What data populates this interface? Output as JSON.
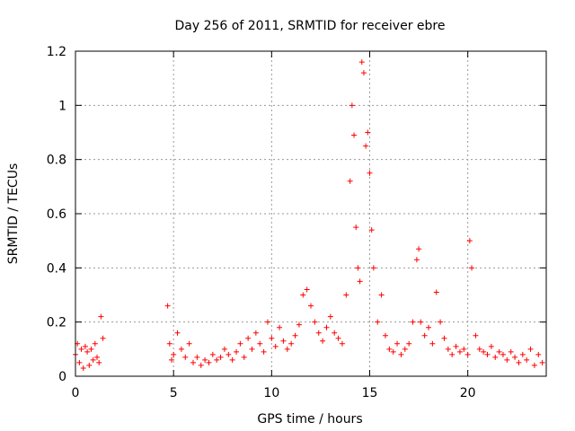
{
  "chart_data": {
    "type": "scatter",
    "title": "Day 256 of 2011, SRMTID for receiver ebre",
    "xlabel": "GPS time / hours",
    "ylabel": "SRMTID / TECUs",
    "xlim": [
      0,
      24
    ],
    "ylim": [
      0,
      1.2
    ],
    "xticks": [
      0,
      5,
      10,
      15,
      20
    ],
    "xtick_labels": [
      "0",
      "5",
      "10",
      "15",
      "20"
    ],
    "yticks": [
      0,
      0.2,
      0.4,
      0.6,
      0.8,
      1.0,
      1.2
    ],
    "ytick_labels": [
      "0",
      "0.2",
      "0.4",
      "0.6",
      "0.8",
      "1",
      "1.2"
    ],
    "grid": true,
    "marker": "+",
    "color": "#ff0000",
    "series": [
      {
        "name": "SRMTID",
        "x": [
          0.0,
          0.1,
          0.2,
          0.3,
          0.4,
          0.5,
          0.6,
          0.7,
          0.8,
          0.9,
          1.0,
          1.1,
          1.2,
          1.3,
          1.4,
          4.7,
          4.8,
          4.9,
          5.0,
          5.2,
          5.4,
          5.6,
          5.8,
          6.0,
          6.2,
          6.4,
          6.6,
          6.8,
          7.0,
          7.2,
          7.4,
          7.6,
          7.8,
          8.0,
          8.2,
          8.4,
          8.6,
          8.8,
          9.0,
          9.2,
          9.4,
          9.6,
          9.8,
          10.0,
          10.2,
          10.4,
          10.6,
          10.8,
          11.0,
          11.2,
          11.4,
          11.6,
          11.8,
          12.0,
          12.2,
          12.4,
          12.6,
          12.8,
          13.0,
          13.2,
          13.4,
          13.6,
          13.8,
          14.0,
          14.1,
          14.2,
          14.3,
          14.4,
          14.5,
          14.6,
          14.7,
          14.8,
          14.9,
          15.0,
          15.1,
          15.2,
          15.4,
          15.6,
          15.8,
          16.0,
          16.2,
          16.4,
          16.6,
          16.8,
          17.0,
          17.2,
          17.4,
          17.5,
          17.6,
          17.8,
          18.0,
          18.2,
          18.4,
          18.6,
          18.8,
          19.0,
          19.2,
          19.4,
          19.6,
          19.8,
          20.0,
          20.1,
          20.2,
          20.4,
          20.6,
          20.8,
          21.0,
          21.2,
          21.4,
          21.6,
          21.8,
          22.0,
          22.2,
          22.4,
          22.6,
          22.8,
          23.0,
          23.2,
          23.4,
          23.6,
          23.8
        ],
        "y": [
          0.08,
          0.12,
          0.05,
          0.1,
          0.03,
          0.11,
          0.09,
          0.04,
          0.1,
          0.06,
          0.12,
          0.07,
          0.05,
          0.22,
          0.14,
          0.26,
          0.12,
          0.06,
          0.08,
          0.16,
          0.1,
          0.07,
          0.12,
          0.05,
          0.07,
          0.04,
          0.06,
          0.05,
          0.08,
          0.06,
          0.07,
          0.1,
          0.08,
          0.06,
          0.09,
          0.12,
          0.07,
          0.14,
          0.1,
          0.16,
          0.12,
          0.09,
          0.2,
          0.14,
          0.11,
          0.18,
          0.13,
          0.1,
          0.12,
          0.15,
          0.19,
          0.3,
          0.32,
          0.26,
          0.2,
          0.16,
          0.13,
          0.18,
          0.22,
          0.16,
          0.14,
          0.12,
          0.3,
          0.72,
          1.0,
          0.89,
          0.55,
          0.4,
          0.35,
          1.16,
          1.12,
          0.85,
          0.9,
          0.75,
          0.54,
          0.4,
          0.2,
          0.3,
          0.15,
          0.1,
          0.09,
          0.12,
          0.08,
          0.1,
          0.12,
          0.2,
          0.43,
          0.47,
          0.2,
          0.15,
          0.18,
          0.12,
          0.31,
          0.2,
          0.14,
          0.1,
          0.08,
          0.11,
          0.09,
          0.1,
          0.08,
          0.5,
          0.4,
          0.15,
          0.1,
          0.09,
          0.08,
          0.11,
          0.07,
          0.09,
          0.08,
          0.06,
          0.09,
          0.07,
          0.05,
          0.08,
          0.06,
          0.1,
          0.04,
          0.08,
          0.05
        ]
      }
    ]
  }
}
